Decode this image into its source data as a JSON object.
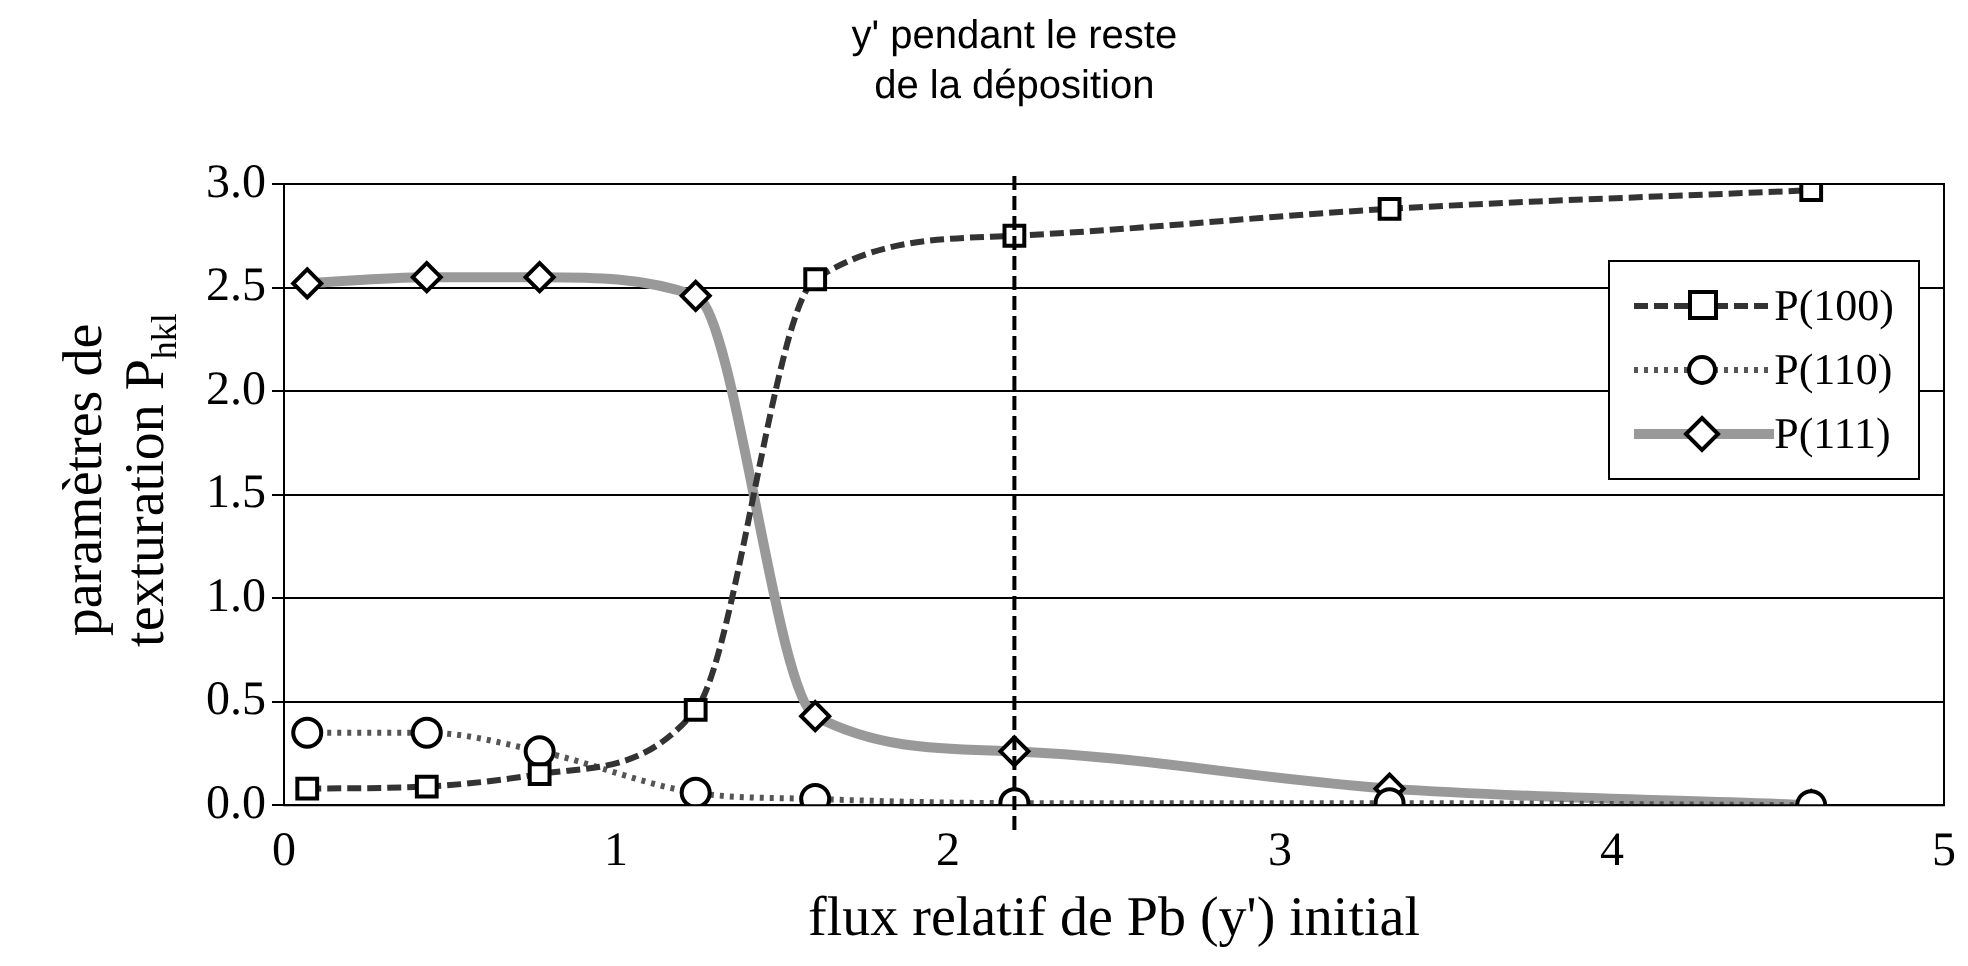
{
  "chart_data": {
    "type": "line",
    "xlabel": "flux relatif de Pb (y') initial",
    "ylabel": "paramètres de texturation P$_{hkl}$",
    "x": [
      0.07,
      0.43,
      0.77,
      1.24,
      1.6,
      2.2,
      3.33,
      4.6
    ],
    "series": [
      {
        "name": "P(100)",
        "color": "#333333",
        "marker": "square",
        "line_style": "dashed",
        "values": [
          0.08,
          0.09,
          0.15,
          0.46,
          2.54,
          2.75,
          2.88,
          2.97
        ]
      },
      {
        "name": "P(110)",
        "color": "#555555",
        "marker": "circle",
        "line_style": "dotted",
        "values": [
          0.35,
          0.35,
          0.26,
          0.06,
          0.03,
          0.01,
          0.01,
          0.0
        ]
      },
      {
        "name": "P(111)",
        "color": "#999999",
        "marker": "diamond",
        "line_style": "solid",
        "values": [
          2.52,
          2.55,
          2.55,
          2.46,
          0.43,
          0.26,
          0.08,
          0.0
        ]
      }
    ],
    "xlim": [
      0,
      5
    ],
    "xticks": [
      0,
      1,
      2,
      3,
      4,
      5
    ],
    "ylim": [
      0,
      3
    ],
    "yticks": [
      {
        "value": 0,
        "label": "0.0"
      },
      {
        "value": 0.5,
        "label": "0.5"
      },
      {
        "value": 1,
        "label": "1.0"
      },
      {
        "value": 1.5,
        "label": "1.5"
      },
      {
        "value": 2,
        "label": "2.0"
      },
      {
        "value": 2.5,
        "label": "2.5"
      },
      {
        "value": 3,
        "label": "3.0"
      }
    ],
    "ref_lines": [
      {
        "axis": "x",
        "value": 2.2,
        "label": "y' pendant le reste\nde la déposition",
        "line_style": "dashed",
        "color": "#000000"
      }
    ],
    "grid": "y",
    "legend": "right"
  }
}
